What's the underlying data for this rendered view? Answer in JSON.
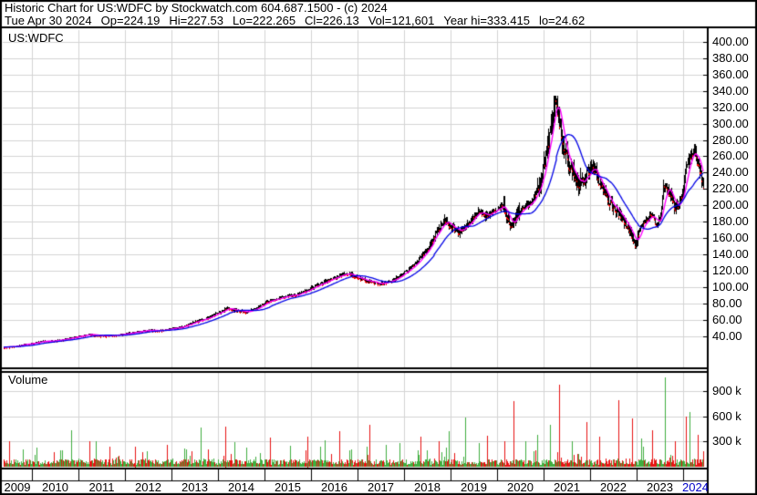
{
  "header": {
    "line1": "Historic Chart for US:WDFC by Stockwatch.com 604.687.1500 - (c) 2024",
    "line2_segments": [
      "Tue Apr 30 2024",
      "Op=224.19",
      "Hi=227.53",
      "Lo=222.265",
      "Cl=226.13",
      "Vol=121,601",
      "Year hi=333.415",
      "lo=24.62"
    ]
  },
  "price_panel": {
    "symbol_label": "US:WDFC",
    "axis_labels": [
      "400.00",
      "380.00",
      "360.00",
      "340.00",
      "320.00",
      "300.00",
      "280.00",
      "260.00",
      "240.00",
      "220.00",
      "200.00",
      "180.00",
      "160.00",
      "140.00",
      "120.00",
      "100.00",
      "80.00",
      "60.00",
      "40.00"
    ]
  },
  "volume_panel": {
    "label": "Volume",
    "axis_labels": [
      "900 k",
      "600 k",
      "300 k"
    ]
  },
  "x_axis": {
    "years": [
      "2009",
      "2010",
      "2011",
      "2012",
      "2013",
      "2014",
      "2015",
      "2016",
      "2017",
      "2018",
      "2019",
      "2020",
      "2021",
      "2022",
      "2023",
      "2024"
    ]
  },
  "colors": {
    "background": "#FFFFFF",
    "border": "#000000",
    "grid": "#D4D4D4",
    "candle": "#000000",
    "candle_tick": "#FF0000",
    "ma_short": "#FF00FF",
    "ma_long": "#0000E6",
    "volume_up": "#3FAE3F",
    "volume_down": "#E81212",
    "text": "#000000",
    "year_current": "#0000C8"
  },
  "chart_data": {
    "type": "candlestick+volume",
    "title": "Historic Chart for US:WDFC",
    "symbol": "US:WDFC",
    "x_range_years": [
      2009.39,
      2024.43
    ],
    "price_axis": {
      "gridline_min": 40,
      "gridline_max": 400,
      "step": 20,
      "unit": "USD"
    },
    "volume_axis": {
      "gridlines_k": [
        300,
        600,
        900
      ],
      "unit": "shares"
    },
    "legend": {
      "grid": true,
      "price_labels_position": "right",
      "year_labels_position": "bottom"
    },
    "quote": {
      "date": "Tue Apr 30 2024",
      "open": 224.19,
      "high": 227.53,
      "low": 222.265,
      "close": 226.13,
      "volume": 121601,
      "year_hi": 333.415,
      "year_lo": 24.62
    },
    "series": {
      "price_anchors": [
        [
          2009.4,
          26.5
        ],
        [
          2009.6,
          27
        ],
        [
          2009.75,
          29
        ],
        [
          2010.0,
          31
        ],
        [
          2010.2,
          33.5
        ],
        [
          2010.45,
          34
        ],
        [
          2010.7,
          36
        ],
        [
          2011.0,
          39.5
        ],
        [
          2011.25,
          42
        ],
        [
          2011.5,
          40
        ],
        [
          2011.75,
          41
        ],
        [
          2012.0,
          42.5
        ],
        [
          2012.25,
          45
        ],
        [
          2012.5,
          47
        ],
        [
          2012.75,
          46.5
        ],
        [
          2013.0,
          49
        ],
        [
          2013.25,
          52
        ],
        [
          2013.5,
          57
        ],
        [
          2013.75,
          62
        ],
        [
          2014.0,
          68.5
        ],
        [
          2014.2,
          74
        ],
        [
          2014.4,
          71
        ],
        [
          2014.6,
          69.5
        ],
        [
          2014.8,
          73
        ],
        [
          2015.0,
          81
        ],
        [
          2015.2,
          85
        ],
        [
          2015.45,
          88.5
        ],
        [
          2015.7,
          91
        ],
        [
          2015.9,
          96
        ],
        [
          2016.1,
          101
        ],
        [
          2016.35,
          108
        ],
        [
          2016.6,
          114
        ],
        [
          2016.8,
          117
        ],
        [
          2017.0,
          111
        ],
        [
          2017.2,
          107.5
        ],
        [
          2017.45,
          104
        ],
        [
          2017.7,
          107
        ],
        [
          2017.9,
          113
        ],
        [
          2018.1,
          122
        ],
        [
          2018.3,
          133
        ],
        [
          2018.5,
          148
        ],
        [
          2018.7,
          166
        ],
        [
          2018.88,
          183
        ],
        [
          2019.05,
          172
        ],
        [
          2019.2,
          167
        ],
        [
          2019.4,
          180
        ],
        [
          2019.6,
          192.5
        ],
        [
          2019.75,
          187
        ],
        [
          2019.95,
          194
        ],
        [
          2020.12,
          200
        ],
        [
          2020.28,
          176
        ],
        [
          2020.45,
          190
        ],
        [
          2020.6,
          198
        ],
        [
          2020.75,
          205
        ],
        [
          2020.9,
          222
        ],
        [
          2021.0,
          252
        ],
        [
          2021.1,
          280
        ],
        [
          2021.2,
          318
        ],
        [
          2021.27,
          330
        ],
        [
          2021.33,
          310
        ],
        [
          2021.4,
          282
        ],
        [
          2021.5,
          258
        ],
        [
          2021.62,
          240
        ],
        [
          2021.75,
          226
        ],
        [
          2021.88,
          232
        ],
        [
          2022.0,
          247
        ],
        [
          2022.12,
          240
        ],
        [
          2022.25,
          222
        ],
        [
          2022.4,
          205
        ],
        [
          2022.55,
          193
        ],
        [
          2022.7,
          183
        ],
        [
          2022.82,
          172
        ],
        [
          2022.95,
          152
        ],
        [
          2023.08,
          172
        ],
        [
          2023.2,
          183
        ],
        [
          2023.32,
          190
        ],
        [
          2023.42,
          176
        ],
        [
          2023.5,
          186
        ],
        [
          2023.58,
          225
        ],
        [
          2023.7,
          213
        ],
        [
          2023.82,
          196
        ],
        [
          2023.95,
          208
        ],
        [
          2024.05,
          240
        ],
        [
          2024.15,
          262
        ],
        [
          2024.22,
          270
        ],
        [
          2024.3,
          252
        ],
        [
          2024.43,
          226
        ]
      ],
      "ma_short": {
        "name": "short moving average",
        "window_weeks": 9,
        "color_key": "ma_short"
      },
      "ma_long": {
        "name": "long moving average",
        "window_weeks": 30,
        "color_key": "ma_long"
      },
      "volume_spikes_k": [
        [
          2009.51,
          300,
          "red"
        ],
        [
          2010.1,
          220,
          "green"
        ],
        [
          2010.84,
          430,
          "green"
        ],
        [
          2011.24,
          300,
          "red"
        ],
        [
          2011.67,
          230,
          "red"
        ],
        [
          2012.2,
          240,
          "red"
        ],
        [
          2012.9,
          260,
          "red"
        ],
        [
          2013.3,
          200,
          "green"
        ],
        [
          2013.62,
          460,
          "green"
        ],
        [
          2014.15,
          480,
          "red"
        ],
        [
          2014.6,
          220,
          "green"
        ],
        [
          2015.1,
          340,
          "red"
        ],
        [
          2015.55,
          250,
          "green"
        ],
        [
          2015.9,
          360,
          "red"
        ],
        [
          2016.3,
          310,
          "green"
        ],
        [
          2016.6,
          420,
          "red"
        ],
        [
          2017.25,
          500,
          "red"
        ],
        [
          2017.6,
          260,
          "green"
        ],
        [
          2017.9,
          280,
          "green"
        ],
        [
          2018.35,
          350,
          "red"
        ],
        [
          2018.75,
          300,
          "red"
        ],
        [
          2018.95,
          420,
          "green"
        ],
        [
          2019.3,
          580,
          "green"
        ],
        [
          2019.6,
          280,
          "green"
        ],
        [
          2019.78,
          370,
          "red"
        ],
        [
          2020.15,
          300,
          "red"
        ],
        [
          2020.33,
          780,
          "red"
        ],
        [
          2020.6,
          300,
          "green"
        ],
        [
          2020.85,
          380,
          "green"
        ],
        [
          2021.12,
          500,
          "green"
        ],
        [
          2021.33,
          975,
          "red"
        ],
        [
          2021.6,
          300,
          "green"
        ],
        [
          2021.9,
          525,
          "red"
        ],
        [
          2022.2,
          350,
          "red"
        ],
        [
          2022.6,
          790,
          "red"
        ],
        [
          2022.88,
          570,
          "red"
        ],
        [
          2023.1,
          330,
          "green"
        ],
        [
          2023.33,
          430,
          "red"
        ],
        [
          2023.59,
          1060,
          "green"
        ],
        [
          2023.8,
          300,
          "red"
        ],
        [
          2024.05,
          590,
          "red"
        ],
        [
          2024.13,
          650,
          "green"
        ],
        [
          2024.3,
          380,
          "red"
        ]
      ]
    }
  }
}
